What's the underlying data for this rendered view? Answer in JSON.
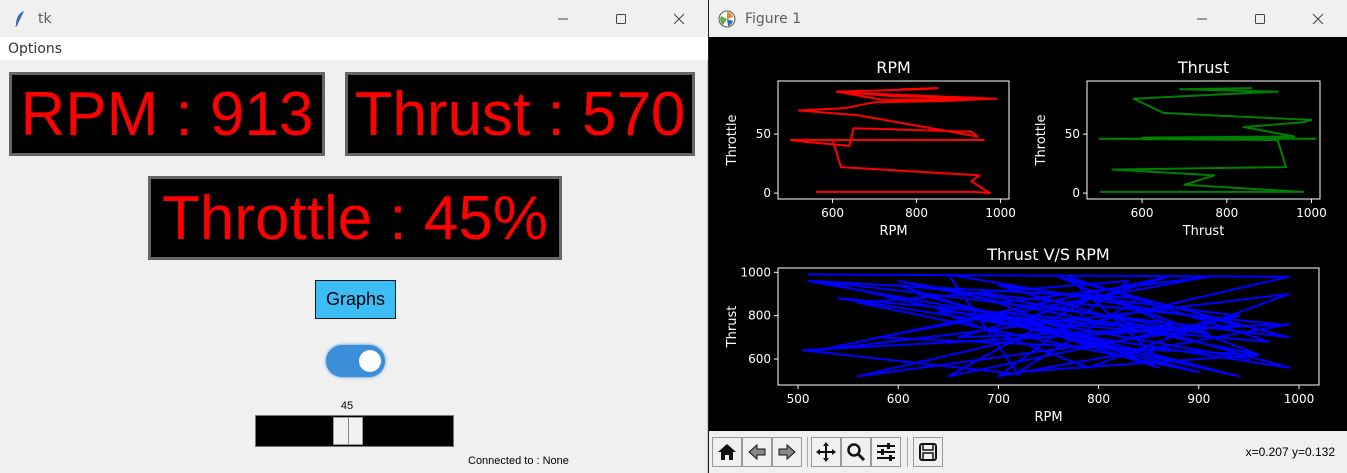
{
  "tk_window": {
    "title": "tk",
    "menu": {
      "options_label": "Options"
    },
    "rpm_display": "RPM : 913",
    "thrust_display": "Thrust : 570",
    "throttle_display": "Throttle : 45%",
    "graphs_button_label": "Graphs",
    "toggle": {
      "state": "on"
    },
    "slider": {
      "value": "45",
      "fraction": 0.45
    },
    "status_text": "Connected to : None",
    "colors": {
      "display_text": "#ff0000",
      "graphs_button": "#3cbdf5",
      "toggle_on": "#3a8fd8"
    }
  },
  "figure_window": {
    "title": "Figure 1",
    "toolbar": {
      "buttons": [
        "home-icon",
        "back-arrow-icon",
        "forward-arrow-icon",
        "pan-icon",
        "zoom-icon",
        "configure-subplots-icon",
        "save-icon"
      ],
      "coordinate_readout": "x=0.207 y=0.132"
    }
  },
  "chart_data": [
    {
      "type": "line",
      "title": "RPM",
      "xlabel": "RPM",
      "ylabel": "Throttle",
      "xlim": [
        470,
        1020
      ],
      "ylim": [
        -5,
        95
      ],
      "xticks": [
        "600",
        "800",
        "1000"
      ],
      "yticks": [
        "0",
        "50"
      ],
      "color": "#ff0000",
      "series": [
        {
          "x": [
            560,
            940,
            975,
            930,
            950,
            620,
            600,
            960,
            500,
            520,
            640,
            650,
            930,
            945,
            660,
            520,
            630,
            700,
            860,
            980,
            750,
            640,
            990,
            720,
            610,
            810,
            850,
            760
          ],
          "y": [
            1,
            1,
            0,
            10,
            15,
            22,
            45,
            45,
            45,
            44,
            40,
            55,
            52,
            48,
            66,
            70,
            72,
            77,
            78,
            80,
            82,
            85,
            80,
            79,
            86,
            88,
            89,
            88
          ]
        }
      ]
    },
    {
      "type": "line",
      "title": "Thrust",
      "xlabel": "Thrust",
      "ylabel": "Throttle",
      "xlim": [
        470,
        1020
      ],
      "ylim": [
        -5,
        95
      ],
      "xticks": [
        "600",
        "800",
        "1000"
      ],
      "yticks": [
        "0",
        "50"
      ],
      "color": "#008000",
      "series": [
        {
          "x": [
            500,
            980,
            700,
            770,
            530,
            940,
            920,
            500,
            1010,
            600,
            960,
            840,
            980,
            1000,
            760,
            650,
            580,
            920,
            690,
            860
          ],
          "y": [
            1,
            1,
            7,
            15,
            20,
            22,
            45,
            46,
            46,
            47,
            48,
            56,
            60,
            62,
            66,
            68,
            80,
            86,
            88,
            89
          ]
        }
      ]
    },
    {
      "type": "line",
      "title": "Thrust V/S RPM",
      "xlabel": "RPM",
      "ylabel": "Thrust",
      "xlim": [
        480,
        1020
      ],
      "ylim": [
        480,
        1020
      ],
      "xticks": [
        "500",
        "600",
        "700",
        "800",
        "900",
        "1000"
      ],
      "yticks": [
        "600",
        "800",
        "1000"
      ],
      "color": "#0000ff",
      "series": [
        {
          "x": [
            510,
            990,
            560,
            940,
            650,
            720,
            505,
            980,
            600,
            860,
            700,
            910,
            580,
            960,
            800,
            650,
            940,
            700,
            990,
            540,
            880,
            760,
            990,
            520,
            940,
            620,
            860,
            770,
            970,
            690,
            900,
            560,
            830,
            700,
            990,
            660,
            870,
            520,
            990,
            790,
            640,
            910,
            600,
            960,
            720,
            840,
            510,
            950,
            680
          ],
          "y": [
            990,
            980,
            520,
            760,
            990,
            530,
            640,
            760,
            940,
            560,
            860,
            980,
            700,
            620,
            900,
            520,
            800,
            940,
            560,
            880,
            740,
            980,
            700,
            960,
            520,
            900,
            600,
            980,
            680,
            790,
            540,
            860,
            960,
            520,
            760,
            700,
            980,
            640,
            900,
            560,
            820,
            720,
            960,
            620,
            540,
            880,
            960,
            600,
            820
          ]
        }
      ]
    }
  ]
}
